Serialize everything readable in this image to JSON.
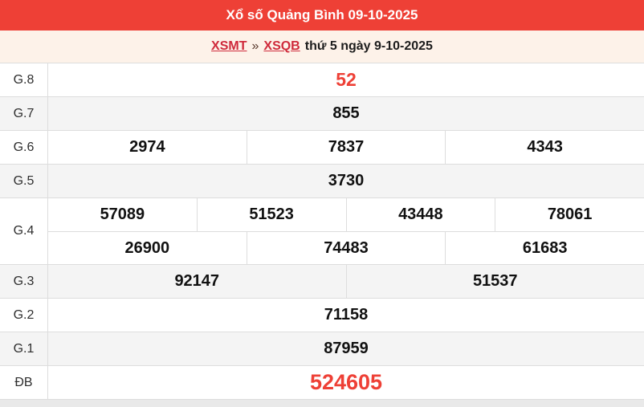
{
  "header": {
    "title": "Xổ số Quảng Bình 09-10-2025"
  },
  "breadcrumb": {
    "link_region": "XSMT",
    "separator": "»",
    "link_province": "XSQB",
    "suffix": "thứ 5 ngày 9-10-2025"
  },
  "colors": {
    "accent_red": "#ee4036",
    "link_red": "#cf2a3b",
    "subtitle_bg": "#fdf2e9",
    "row_alt_bg": "#f4f4f4",
    "table_border": "#dddddd",
    "number_text": "#111111"
  },
  "results": {
    "rows": [
      {
        "label": "G.8",
        "lines": [
          [
            "52"
          ]
        ],
        "highlight": true,
        "size": "large"
      },
      {
        "label": "G.7",
        "lines": [
          [
            "855"
          ]
        ]
      },
      {
        "label": "G.6",
        "lines": [
          [
            "2974",
            "7837",
            "4343"
          ]
        ]
      },
      {
        "label": "G.5",
        "lines": [
          [
            "3730"
          ]
        ]
      },
      {
        "label": "G.4",
        "lines": [
          [
            "57089",
            "51523",
            "43448",
            "78061"
          ],
          [
            "26900",
            "74483",
            "61683"
          ]
        ]
      },
      {
        "label": "G.3",
        "lines": [
          [
            "92147",
            "51537"
          ]
        ]
      },
      {
        "label": "G.2",
        "lines": [
          [
            "71158"
          ]
        ]
      },
      {
        "label": "G.1",
        "lines": [
          [
            "87959"
          ]
        ]
      },
      {
        "label": "ĐB",
        "lines": [
          [
            "524605"
          ]
        ],
        "highlight": true,
        "size": "xlarge"
      }
    ]
  }
}
